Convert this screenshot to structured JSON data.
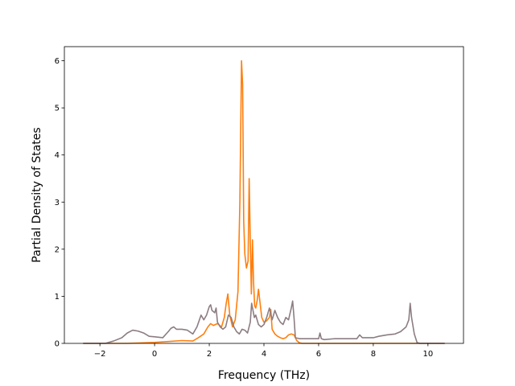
{
  "chart_data": {
    "type": "line",
    "title": "",
    "xlabel": "Frequency (THz)",
    "ylabel": "Partial Density of States",
    "xlim": [
      -3.3,
      11.3
    ],
    "ylim": [
      0,
      6.3
    ],
    "xticks": [
      -2,
      0,
      2,
      4,
      6,
      8,
      10
    ],
    "yticks": [
      0,
      1,
      2,
      3,
      4,
      5,
      6
    ],
    "xtick_labels": [
      "−2",
      "0",
      "2",
      "4",
      "6",
      "8",
      "10"
    ],
    "ytick_labels": [
      "0",
      "1",
      "2",
      "3",
      "4",
      "5",
      "6"
    ],
    "grid": false,
    "legend": "none",
    "series": [
      {
        "color": "#ff7f0e",
        "x": [
          -2.6,
          -1.0,
          0.0,
          0.5,
          1.0,
          1.4,
          1.6,
          1.8,
          1.95,
          2.05,
          2.15,
          2.3,
          2.45,
          2.55,
          2.62,
          2.68,
          2.75,
          2.85,
          2.95,
          3.05,
          3.12,
          3.18,
          3.22,
          3.26,
          3.3,
          3.36,
          3.42,
          3.46,
          3.5,
          3.54,
          3.58,
          3.62,
          3.66,
          3.7,
          3.75,
          3.8,
          3.86,
          3.92,
          4.0,
          4.1,
          4.2,
          4.25,
          4.3,
          4.4,
          4.5,
          4.6,
          4.7,
          4.8,
          4.9,
          5.0,
          5.1,
          5.2,
          5.3,
          5.4,
          6.0,
          8.0,
          10.6
        ],
        "y": [
          0,
          0,
          0.02,
          0.04,
          0.06,
          0.05,
          0.12,
          0.2,
          0.35,
          0.42,
          0.38,
          0.42,
          0.35,
          0.55,
          0.85,
          1.05,
          0.6,
          0.35,
          0.5,
          1.1,
          3.0,
          6.0,
          5.5,
          2.6,
          1.9,
          1.6,
          1.75,
          3.5,
          2.2,
          1.05,
          2.2,
          1.3,
          0.8,
          0.75,
          0.9,
          1.15,
          0.85,
          0.55,
          0.45,
          0.48,
          0.55,
          0.72,
          0.3,
          0.2,
          0.15,
          0.12,
          0.1,
          0.12,
          0.18,
          0.2,
          0.18,
          0.06,
          0.01,
          0,
          0,
          0,
          0
        ]
      },
      {
        "color": "#8c7d82",
        "x": [
          -2.6,
          -1.8,
          -1.5,
          -1.2,
          -1.0,
          -0.8,
          -0.6,
          -0.4,
          -0.2,
          0.0,
          0.3,
          0.5,
          0.6,
          0.7,
          0.8,
          1.0,
          1.2,
          1.4,
          1.55,
          1.7,
          1.8,
          1.9,
          2.0,
          2.05,
          2.1,
          2.2,
          2.25,
          2.3,
          2.4,
          2.5,
          2.6,
          2.7,
          2.8,
          2.9,
          3.0,
          3.1,
          3.2,
          3.3,
          3.4,
          3.5,
          3.55,
          3.6,
          3.65,
          3.7,
          3.8,
          3.9,
          4.0,
          4.1,
          4.2,
          4.3,
          4.4,
          4.5,
          4.6,
          4.7,
          4.8,
          4.9,
          5.0,
          5.05,
          5.1,
          5.15,
          5.3,
          5.6,
          6.0,
          6.05,
          6.1,
          6.2,
          6.6,
          7.0,
          7.4,
          7.5,
          7.6,
          8.0,
          8.2,
          8.5,
          8.8,
          9.0,
          9.2,
          9.3,
          9.35,
          9.4,
          9.5,
          9.6,
          9.7,
          10.0,
          10.6
        ],
        "y": [
          0,
          0,
          0.05,
          0.12,
          0.22,
          0.28,
          0.26,
          0.22,
          0.15,
          0.14,
          0.12,
          0.25,
          0.32,
          0.35,
          0.3,
          0.3,
          0.28,
          0.2,
          0.35,
          0.6,
          0.5,
          0.6,
          0.78,
          0.82,
          0.7,
          0.65,
          0.75,
          0.45,
          0.35,
          0.3,
          0.35,
          0.6,
          0.55,
          0.35,
          0.25,
          0.2,
          0.3,
          0.28,
          0.22,
          0.45,
          0.85,
          0.7,
          0.55,
          0.6,
          0.4,
          0.35,
          0.4,
          0.55,
          0.75,
          0.5,
          0.7,
          0.55,
          0.45,
          0.4,
          0.55,
          0.5,
          0.75,
          0.9,
          0.55,
          0.12,
          0.1,
          0.1,
          0.1,
          0.22,
          0.1,
          0.08,
          0.1,
          0.1,
          0.1,
          0.18,
          0.12,
          0.12,
          0.15,
          0.18,
          0.2,
          0.25,
          0.35,
          0.5,
          0.85,
          0.55,
          0.2,
          0.02,
          0,
          0,
          0
        ]
      }
    ]
  }
}
